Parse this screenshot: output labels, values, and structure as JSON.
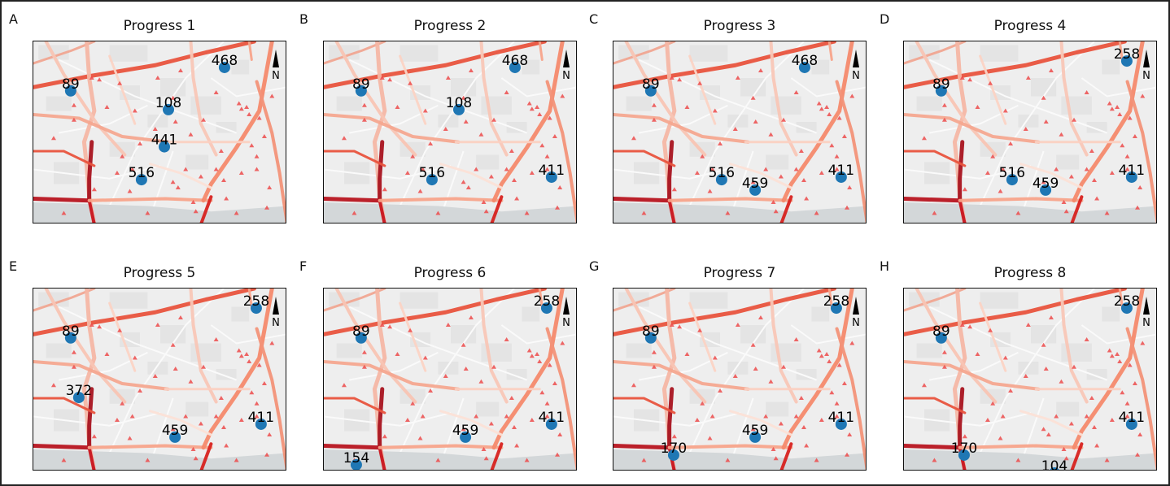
{
  "north_label": "N",
  "panels": [
    {
      "letter": "A",
      "title": "Progress 1",
      "points": [
        {
          "label": "89",
          "x": 0.147,
          "y": 0.27
        },
        {
          "label": "108",
          "x": 0.532,
          "y": 0.373
        },
        {
          "label": "468",
          "x": 0.753,
          "y": 0.142
        },
        {
          "label": "441",
          "x": 0.516,
          "y": 0.576
        },
        {
          "label": "516",
          "x": 0.426,
          "y": 0.756
        }
      ]
    },
    {
      "letter": "B",
      "title": "Progress 2",
      "points": [
        {
          "label": "89",
          "x": 0.147,
          "y": 0.27
        },
        {
          "label": "108",
          "x": 0.532,
          "y": 0.373
        },
        {
          "label": "468",
          "x": 0.753,
          "y": 0.142
        },
        {
          "label": "516",
          "x": 0.426,
          "y": 0.756
        },
        {
          "label": "411",
          "x": 0.897,
          "y": 0.742
        }
      ]
    },
    {
      "letter": "C",
      "title": "Progress 3",
      "points": [
        {
          "label": "89",
          "x": 0.147,
          "y": 0.27
        },
        {
          "label": "468",
          "x": 0.753,
          "y": 0.142
        },
        {
          "label": "516",
          "x": 0.426,
          "y": 0.756
        },
        {
          "label": "459",
          "x": 0.558,
          "y": 0.813
        },
        {
          "label": "411",
          "x": 0.897,
          "y": 0.742
        }
      ]
    },
    {
      "letter": "D",
      "title": "Progress 4",
      "points": [
        {
          "label": "89",
          "x": 0.147,
          "y": 0.27
        },
        {
          "label": "258",
          "x": 0.878,
          "y": 0.107
        },
        {
          "label": "516",
          "x": 0.426,
          "y": 0.756
        },
        {
          "label": "459",
          "x": 0.558,
          "y": 0.813
        },
        {
          "label": "411",
          "x": 0.897,
          "y": 0.742
        }
      ]
    },
    {
      "letter": "E",
      "title": "Progress 5",
      "points": [
        {
          "label": "89",
          "x": 0.147,
          "y": 0.27
        },
        {
          "label": "258",
          "x": 0.878,
          "y": 0.107
        },
        {
          "label": "372",
          "x": 0.179,
          "y": 0.596
        },
        {
          "label": "459",
          "x": 0.558,
          "y": 0.813
        },
        {
          "label": "411",
          "x": 0.897,
          "y": 0.742
        }
      ]
    },
    {
      "letter": "F",
      "title": "Progress 6",
      "points": [
        {
          "label": "89",
          "x": 0.147,
          "y": 0.27
        },
        {
          "label": "258",
          "x": 0.878,
          "y": 0.107
        },
        {
          "label": "154",
          "x": 0.128,
          "y": 0.964
        },
        {
          "label": "459",
          "x": 0.558,
          "y": 0.813
        },
        {
          "label": "411",
          "x": 0.897,
          "y": 0.742
        }
      ]
    },
    {
      "letter": "G",
      "title": "Progress 7",
      "points": [
        {
          "label": "89",
          "x": 0.147,
          "y": 0.27
        },
        {
          "label": "258",
          "x": 0.878,
          "y": 0.107
        },
        {
          "label": "170",
          "x": 0.237,
          "y": 0.911
        },
        {
          "label": "459",
          "x": 0.558,
          "y": 0.813
        },
        {
          "label": "411",
          "x": 0.897,
          "y": 0.742
        }
      ]
    },
    {
      "letter": "H",
      "title": "Progress 8",
      "points": [
        {
          "label": "89",
          "x": 0.147,
          "y": 0.27
        },
        {
          "label": "258",
          "x": 0.878,
          "y": 0.107
        },
        {
          "label": "170",
          "x": 0.237,
          "y": 0.911
        },
        {
          "label": "104",
          "x": 0.593,
          "y": 1.009
        },
        {
          "label": "411",
          "x": 0.897,
          "y": 0.742
        }
      ]
    }
  ]
}
